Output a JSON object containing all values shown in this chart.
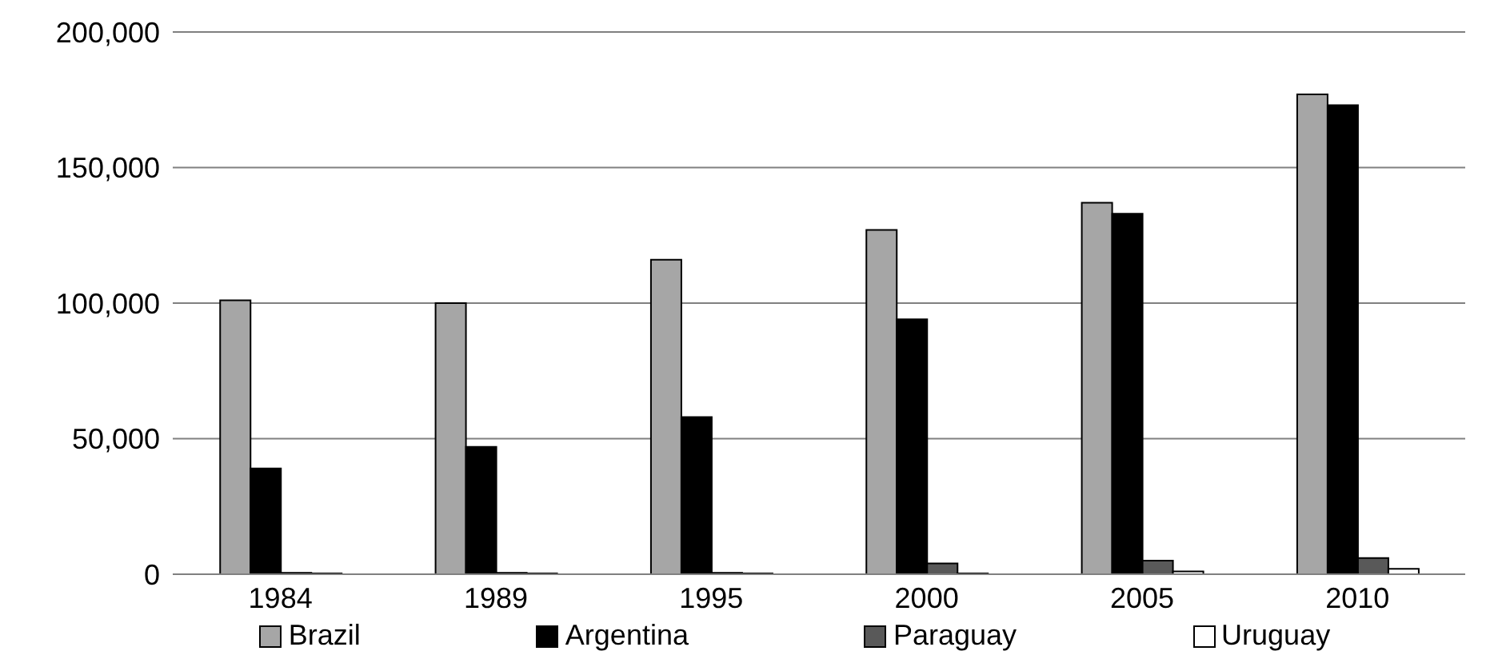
{
  "chart_data": {
    "type": "bar",
    "categories": [
      "1984",
      "1989",
      "1995",
      "2000",
      "2005",
      "2010"
    ],
    "series": [
      {
        "name": "Brazil",
        "color": "#a6a6a6",
        "values": [
          101000,
          100000,
          116000,
          127000,
          137000,
          177000
        ]
      },
      {
        "name": "Argentina",
        "color": "#000000",
        "values": [
          39000,
          47000,
          58000,
          94000,
          133000,
          173000
        ]
      },
      {
        "name": "Paraguay",
        "color": "#595959",
        "values": [
          500,
          500,
          500,
          4000,
          5000,
          6000
        ]
      },
      {
        "name": "Uruguay",
        "color": "#ffffff",
        "values": [
          300,
          300,
          300,
          300,
          1000,
          2000
        ]
      }
    ],
    "ylim": [
      0,
      200000
    ],
    "yticks": [
      0,
      {
        "value": 50000,
        "label": "50,000"
      },
      {
        "value": 100000,
        "label": "100,000"
      },
      {
        "value": 150000,
        "label": "150,000"
      },
      {
        "value": 200000,
        "label": "200,000"
      }
    ],
    "grid": "y",
    "legend": "bottom"
  }
}
